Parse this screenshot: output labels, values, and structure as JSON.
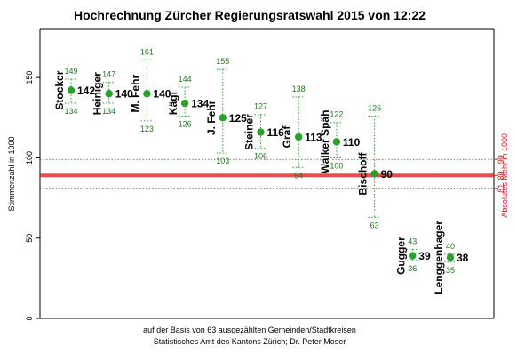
{
  "chart_data": {
    "type": "scatter",
    "title": "Hochrechnung Zürcher Regierungsratswahl 2015 von 12:22",
    "ylabel": "Stimmenzahl in 1000",
    "y2label": "Absolutes Mehr in 1000",
    "ylim": [
      0,
      180
    ],
    "yticks": [
      0,
      50,
      100,
      150
    ],
    "absolute_majority": {
      "estimate": 89,
      "lower": 81,
      "upper": 99,
      "labels": [
        "81",
        "89",
        "99"
      ]
    },
    "candidates": [
      {
        "name": "Stocker",
        "estimate": 142,
        "lower": 134,
        "upper": 149,
        "estimate_label": "142",
        "lower_label": "134",
        "upper_label": "149"
      },
      {
        "name": "Heiniger",
        "estimate": 140,
        "lower": 134,
        "upper": 147,
        "estimate_label": "140",
        "lower_label": "134",
        "upper_label": "147"
      },
      {
        "name": "M. Fehr",
        "estimate": 140,
        "lower": 123,
        "upper": 161,
        "estimate_label": "140",
        "lower_label": "123",
        "upper_label": "161"
      },
      {
        "name": "Kägi",
        "estimate": 134,
        "lower": 126,
        "upper": 144,
        "estimate_label": "134",
        "lower_label": "126",
        "upper_label": "144"
      },
      {
        "name": "J. Fehr",
        "estimate": 125,
        "lower": 103,
        "upper": 155,
        "estimate_label": "125",
        "lower_label": "103",
        "upper_label": "155"
      },
      {
        "name": "Steiner",
        "estimate": 116,
        "lower": 106,
        "upper": 127,
        "estimate_label": "116",
        "lower_label": "106",
        "upper_label": "127"
      },
      {
        "name": "Graf",
        "estimate": 113,
        "lower": 94,
        "upper": 138,
        "estimate_label": "113",
        "lower_label": "94",
        "upper_label": "138"
      },
      {
        "name": "Walker Späh",
        "estimate": 110,
        "lower": 100,
        "upper": 122,
        "estimate_label": "110",
        "lower_label": "100",
        "upper_label": "122"
      },
      {
        "name": "Bischoff",
        "estimate": 90,
        "lower": 63,
        "upper": 126,
        "estimate_label": "90",
        "lower_label": "63",
        "upper_label": "126"
      },
      {
        "name": "Gugger",
        "estimate": 39,
        "lower": 36,
        "upper": 43,
        "estimate_label": "39",
        "lower_label": "36",
        "upper_label": "43"
      },
      {
        "name": "Lenggenhager",
        "estimate": 38,
        "lower": 35,
        "upper": 40,
        "estimate_label": "38",
        "lower_label": "35",
        "upper_label": "40"
      }
    ],
    "notes": [
      "auf der Basis von 63 ausgezählten Gemeinden/Stadtkreisen",
      "Statistisches Amt des Kantons Zürich; Dr. Peter Moser"
    ],
    "colors": {
      "point": "#2ca02c",
      "interval": "#2ca02c",
      "majority": "#e41a1c"
    }
  }
}
